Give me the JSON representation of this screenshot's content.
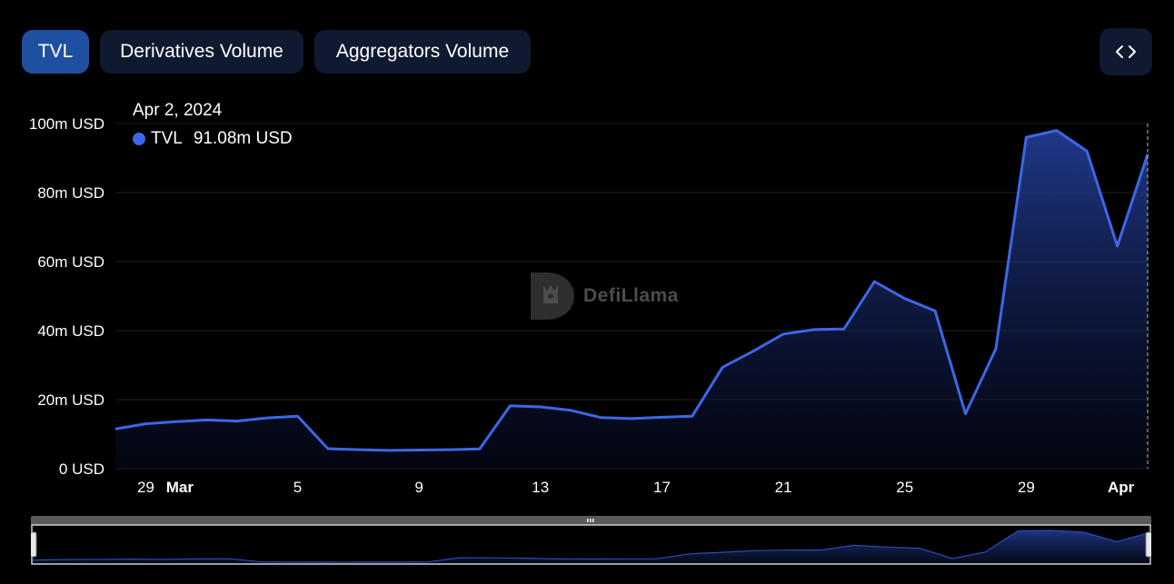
{
  "tabs": [
    {
      "label": "TVL",
      "active": true
    },
    {
      "label": "Derivatives Volume",
      "active": false
    },
    {
      "label": "Aggregators Volume",
      "active": false
    }
  ],
  "embed_icon": "code-brackets-icon",
  "tooltip": {
    "date": "Apr 2, 2024",
    "series": "TVL",
    "value": "91.08m USD",
    "dot_color": "#3d67e6"
  },
  "watermark": {
    "text": "DefiLlama",
    "icon": "llama-logo-icon"
  },
  "colors": {
    "line": "#3d67e6",
    "accent_tab": "#1f4fa0",
    "tab_bg": "#0f1a30",
    "background": "#000000"
  },
  "chart_data": {
    "type": "area",
    "series": [
      {
        "name": "TVL",
        "unit": "m USD",
        "values": [
          11.5,
          13.0,
          13.6,
          14.1,
          13.8,
          14.7,
          15.2,
          5.8,
          5.5,
          5.3,
          5.4,
          5.5,
          5.7,
          18.2,
          17.9,
          16.9,
          14.8,
          14.5,
          14.9,
          15.2,
          29.4,
          34.0,
          39.0,
          40.3,
          40.5,
          54.2,
          49.3,
          45.7,
          15.9,
          34.7,
          96.0,
          98.0,
          92.0,
          64.5,
          91.08
        ]
      }
    ],
    "x": [
      "2024-02-28",
      "2024-02-29",
      "2024-03-01",
      "2024-03-02",
      "2024-03-03",
      "2024-03-04",
      "2024-03-05",
      "2024-03-06",
      "2024-03-07",
      "2024-03-08",
      "2024-03-09",
      "2024-03-10",
      "2024-03-11",
      "2024-03-12",
      "2024-03-13",
      "2024-03-14",
      "2024-03-15",
      "2024-03-16",
      "2024-03-17",
      "2024-03-18",
      "2024-03-19",
      "2024-03-20",
      "2024-03-21",
      "2024-03-22",
      "2024-03-23",
      "2024-03-24",
      "2024-03-25",
      "2024-03-26",
      "2024-03-27",
      "2024-03-28",
      "2024-03-29",
      "2024-03-30",
      "2024-03-31",
      "2024-04-01",
      "2024-04-02"
    ],
    "x_ticks": [
      {
        "label": "29",
        "index": 1,
        "bold": false
      },
      {
        "label": "Mar",
        "index": 2,
        "bold": true
      },
      {
        "label": "5",
        "index": 6,
        "bold": false
      },
      {
        "label": "9",
        "index": 10,
        "bold": false
      },
      {
        "label": "13",
        "index": 14,
        "bold": false
      },
      {
        "label": "17",
        "index": 18,
        "bold": false
      },
      {
        "label": "21",
        "index": 22,
        "bold": false
      },
      {
        "label": "25",
        "index": 26,
        "bold": false
      },
      {
        "label": "29",
        "index": 30,
        "bold": false
      },
      {
        "label": "Apr",
        "index": 33,
        "bold": true
      }
    ],
    "y_ticks": [
      {
        "value": 0,
        "label": "0 USD"
      },
      {
        "value": 20,
        "label": "20m USD"
      },
      {
        "value": 40,
        "label": "40m USD"
      },
      {
        "value": 60,
        "label": "60m USD"
      },
      {
        "value": 80,
        "label": "80m USD"
      },
      {
        "value": 100,
        "label": "100m USD"
      }
    ],
    "ylim": [
      0,
      100
    ],
    "grid": true,
    "title": "",
    "xlabel": "",
    "ylabel": "",
    "hover_index": 34
  }
}
